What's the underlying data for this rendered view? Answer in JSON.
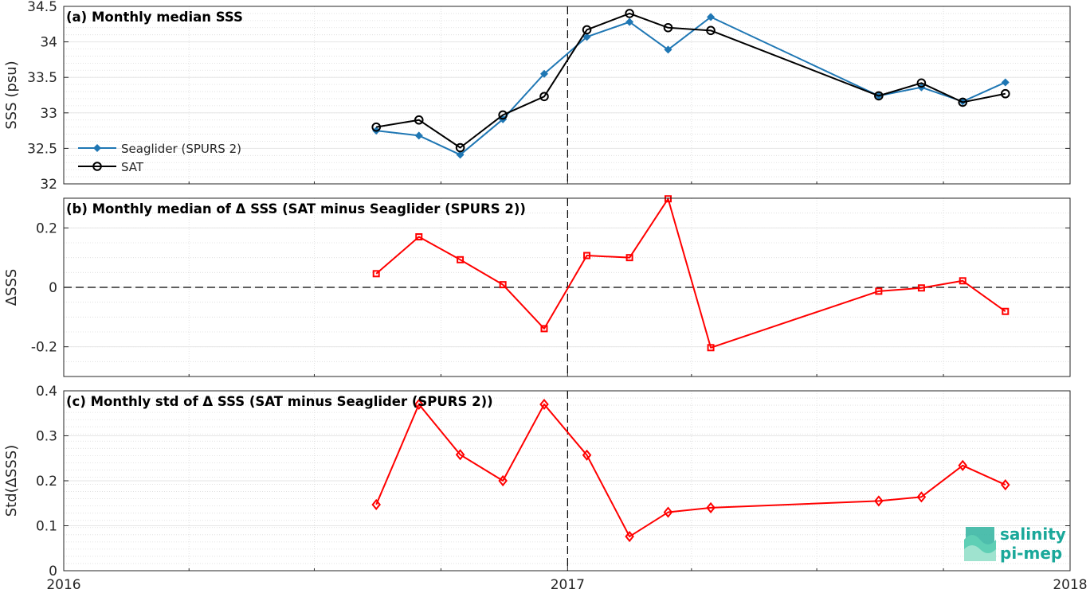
{
  "chart_data": [
    {
      "type": "line",
      "title": "(a) Monthly median SSS",
      "ylabel": "SSS (psu)",
      "ylim": [
        32,
        34.5
      ],
      "yticks": [
        "32",
        "32.5",
        "33",
        "33.5",
        "34",
        "34.5"
      ],
      "xlim": [
        "2016-01-01",
        "2018-01-01"
      ],
      "xticks": [
        "2016",
        "2017",
        "2018"
      ],
      "grid": true,
      "legend_position": "lower-left",
      "series": [
        {
          "name": "Seaglider (SPURS 2)",
          "color": "#1f77b4",
          "x": [
            "2016-08-15",
            "2016-09-15",
            "2016-10-15",
            "2016-11-15",
            "2016-12-15",
            "2017-01-15",
            "2017-02-15",
            "2017-03-15",
            "2017-04-15",
            "2017-08-15",
            "2017-09-15",
            "2017-10-15",
            "2017-11-15"
          ],
          "values": [
            32.75,
            32.68,
            32.41,
            32.91,
            33.55,
            34.07,
            34.28,
            33.89,
            34.35,
            33.24,
            33.36,
            33.16,
            33.43
          ]
        },
        {
          "name": "SAT",
          "color": "#000000",
          "x": [
            "2016-08-15",
            "2016-09-15",
            "2016-10-15",
            "2016-11-15",
            "2016-12-15",
            "2017-01-15",
            "2017-02-15",
            "2017-03-15",
            "2017-04-15",
            "2017-08-15",
            "2017-09-15",
            "2017-10-15",
            "2017-11-15"
          ],
          "values": [
            32.8,
            32.9,
            32.51,
            32.97,
            33.23,
            34.17,
            34.4,
            34.2,
            34.16,
            33.24,
            33.42,
            33.15,
            33.27
          ]
        }
      ]
    },
    {
      "type": "line",
      "title": "(b) Monthly median of Δ SSS (SAT minus Seaglider (SPURS 2))",
      "ylabel": "ΔSSS",
      "ylim": [
        -0.3,
        0.3
      ],
      "yticks": [
        "0.2",
        "0",
        "-0.2"
      ],
      "xlim": [
        "2016-01-01",
        "2018-01-01"
      ],
      "grid": true,
      "series": [
        {
          "color": "#ff0000",
          "x": [
            "2016-08-15",
            "2016-09-15",
            "2016-10-15",
            "2016-11-15",
            "2016-12-15",
            "2017-01-15",
            "2017-02-15",
            "2017-03-15",
            "2017-04-15",
            "2017-08-15",
            "2017-09-15",
            "2017-10-15",
            "2017-11-15"
          ],
          "values": [
            0.046,
            0.17,
            0.093,
            0.009,
            -0.139,
            0.107,
            0.1,
            0.298,
            -0.203,
            -0.013,
            -0.002,
            0.022,
            -0.081
          ]
        }
      ]
    },
    {
      "type": "line",
      "title": "(c) Monthly std of Δ SSS (SAT minus Seaglider (SPURS 2))",
      "ylabel": "Std(ΔSSS)",
      "ylim": [
        0,
        0.4
      ],
      "yticks": [
        "0",
        "0.1",
        "0.2",
        "0.3",
        "0.4"
      ],
      "xlim": [
        "2016-01-01",
        "2018-01-01"
      ],
      "xticks": [
        "2016",
        "2017",
        "2018"
      ],
      "grid": true,
      "series": [
        {
          "color": "#ff0000",
          "x": [
            "2016-08-15",
            "2016-09-15",
            "2016-10-15",
            "2016-11-15",
            "2016-12-15",
            "2017-01-15",
            "2017-02-15",
            "2017-03-15",
            "2017-04-15",
            "2017-08-15",
            "2017-09-15",
            "2017-10-15",
            "2017-11-15"
          ],
          "values": [
            0.147,
            0.37,
            0.258,
            0.2,
            0.37,
            0.257,
            0.076,
            0.13,
            0.14,
            0.155,
            0.164,
            0.234,
            0.191
          ]
        }
      ]
    }
  ],
  "logo": {
    "line1": "salinity",
    "line2": "pi-mep",
    "color": "#1aa89a"
  }
}
